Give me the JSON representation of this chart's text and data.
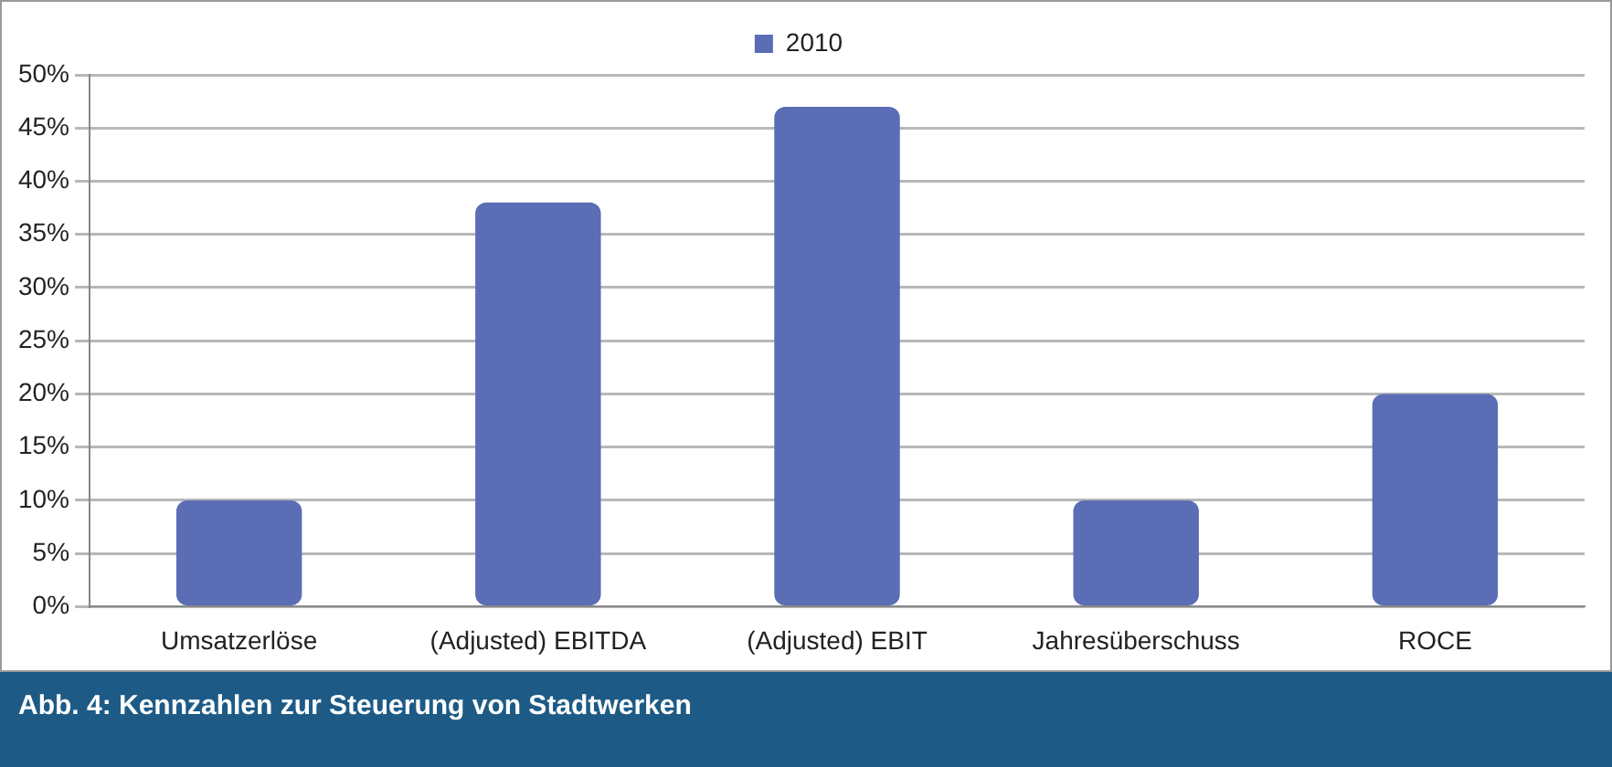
{
  "chart_data": {
    "type": "bar",
    "categories": [
      "Umsatzerlöse",
      "(Adjusted) EBITDA",
      "(Adjusted) EBIT",
      "Jahresüberschuss",
      "ROCE"
    ],
    "series": [
      {
        "name": "2010",
        "color": "#5b6db5",
        "values": [
          10,
          38,
          47,
          10,
          20
        ]
      }
    ],
    "ylim": [
      0,
      50
    ],
    "yticks": [
      {
        "value": 0,
        "label": "0%"
      },
      {
        "value": 5,
        "label": "5%"
      },
      {
        "value": 10,
        "label": "10%"
      },
      {
        "value": 15,
        "label": "15%"
      },
      {
        "value": 20,
        "label": "20%"
      },
      {
        "value": 25,
        "label": "25%"
      },
      {
        "value": 30,
        "label": "30%"
      },
      {
        "value": 35,
        "label": "35%"
      },
      {
        "value": 40,
        "label": "40%"
      },
      {
        "value": 45,
        "label": "45%"
      },
      {
        "value": 50,
        "label": "50%"
      }
    ],
    "grid": "y",
    "legend": "top",
    "annotations": [
      "Abb. 4: Kennzahlen zur Steuerung von Stadtwerken"
    ]
  }
}
